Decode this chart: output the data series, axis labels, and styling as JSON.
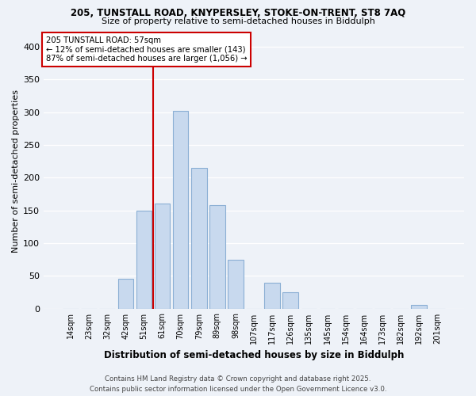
{
  "title1": "205, TUNSTALL ROAD, KNYPERSLEY, STOKE-ON-TRENT, ST8 7AQ",
  "title2": "Size of property relative to semi-detached houses in Biddulph",
  "xlabel": "Distribution of semi-detached houses by size in Biddulph",
  "ylabel": "Number of semi-detached properties",
  "categories": [
    "14sqm",
    "23sqm",
    "32sqm",
    "42sqm",
    "51sqm",
    "61sqm",
    "70sqm",
    "79sqm",
    "89sqm",
    "98sqm",
    "107sqm",
    "117sqm",
    "126sqm",
    "135sqm",
    "145sqm",
    "154sqm",
    "164sqm",
    "173sqm",
    "182sqm",
    "192sqm",
    "201sqm"
  ],
  "values": [
    0,
    0,
    0,
    46,
    150,
    160,
    302,
    215,
    158,
    75,
    0,
    40,
    25,
    0,
    0,
    0,
    0,
    0,
    0,
    5,
    0
  ],
  "bar_color": "#c8d9ee",
  "bar_edge_color": "#8bafd4",
  "annotation_title": "205 TUNSTALL ROAD: 57sqm",
  "annotation_line1": "← 12% of semi-detached houses are smaller (143)",
  "annotation_line2": "87% of semi-detached houses are larger (1,056) →",
  "red_line_color": "#cc0000",
  "red_line_bin": 4,
  "ylim": [
    0,
    420
  ],
  "yticks": [
    0,
    50,
    100,
    150,
    200,
    250,
    300,
    350,
    400
  ],
  "footer1": "Contains HM Land Registry data © Crown copyright and database right 2025.",
  "footer2": "Contains public sector information licensed under the Open Government Licence v3.0.",
  "bg_color": "#eef2f8",
  "plot_bg_color": "#eef2f8"
}
